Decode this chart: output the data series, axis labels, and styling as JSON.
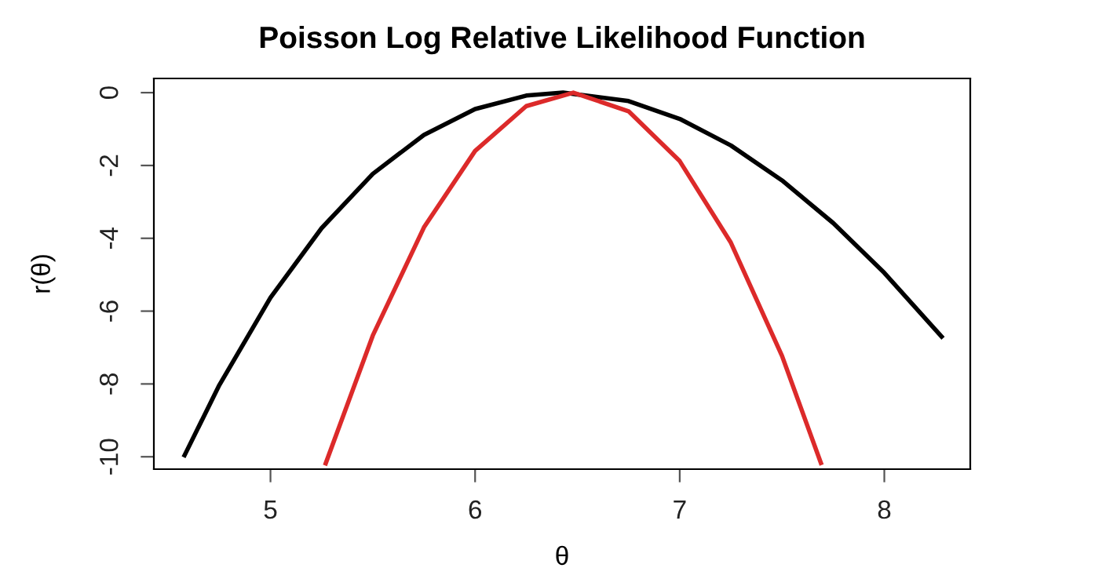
{
  "chart_data": {
    "type": "line",
    "title": "Poisson Log Relative Likelihood Function",
    "xlabel": "θ",
    "ylabel": "r(θ)",
    "xlim": [
      4.43,
      8.42
    ],
    "ylim": [
      -10.34,
      0.39
    ],
    "xticks": [
      5,
      6,
      7,
      8
    ],
    "yticks": [
      -10,
      -8,
      -6,
      -4,
      -2,
      0
    ],
    "grid": false,
    "marker": "none",
    "line_style": "solid",
    "series": [
      {
        "color": "#000000",
        "x": [
          4.58,
          4.75,
          5.0,
          5.25,
          5.5,
          5.75,
          6.0,
          6.25,
          6.43,
          6.75,
          7.0,
          7.25,
          7.5,
          7.75,
          8.0,
          8.28
        ],
        "values": [
          -9.96,
          -8.03,
          -5.63,
          -3.72,
          -2.23,
          -1.16,
          -0.45,
          -0.08,
          0,
          -0.23,
          -0.72,
          -1.45,
          -2.41,
          -3.58,
          -4.95,
          -6.7
        ]
      },
      {
        "color": "#dc2a2a",
        "x": [
          5.27,
          5.5,
          5.75,
          6.0,
          6.25,
          6.48,
          6.75,
          7.0,
          7.25,
          7.5,
          7.69
        ],
        "values": [
          -10.18,
          -6.67,
          -3.7,
          -1.6,
          -0.37,
          0,
          -0.51,
          -1.88,
          -4.12,
          -7.23,
          -10.17
        ]
      }
    ]
  }
}
